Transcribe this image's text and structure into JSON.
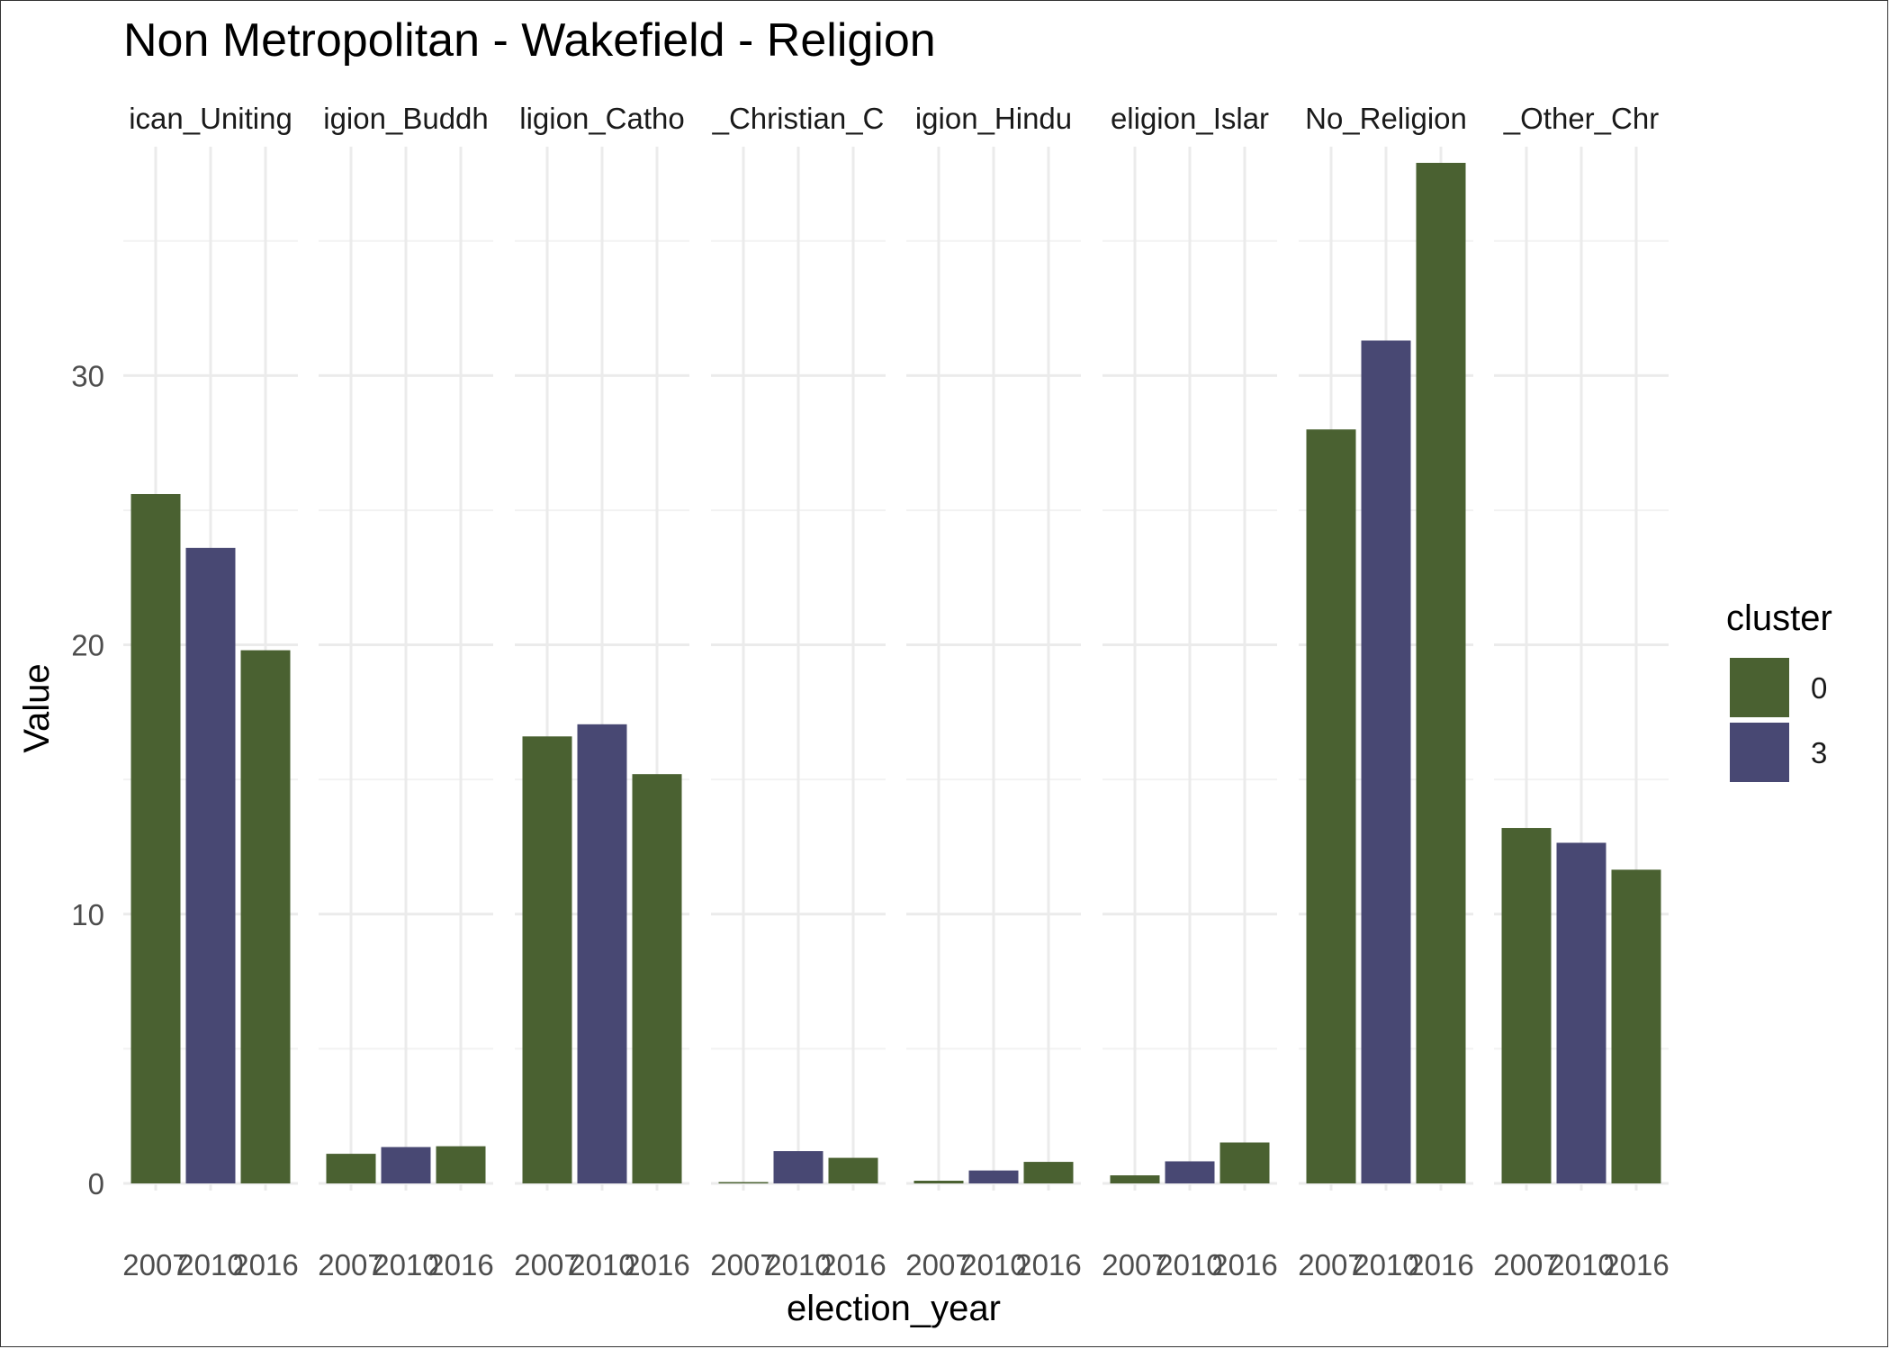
{
  "chart_data": {
    "type": "bar",
    "title": "Non Metropolitan - Wakefield - Religion",
    "xlabel": "election_year",
    "ylabel": "Value",
    "ylim": [
      0,
      38.5
    ],
    "yticks": [
      0,
      10,
      20,
      30
    ],
    "grid": true,
    "legend": {
      "title": "cluster",
      "position": "right",
      "entries": [
        {
          "label": "0",
          "color": "#4a6131"
        },
        {
          "label": "3",
          "color": "#484873"
        }
      ]
    },
    "x": [
      "2007",
      "2010",
      "2016"
    ],
    "facets": [
      {
        "label": "ican_Uniting",
        "values": [
          25.6,
          23.6,
          19.8
        ],
        "clusters": [
          "0",
          "3",
          "0"
        ]
      },
      {
        "label": "igion_Buddh",
        "values": [
          1.1,
          1.35,
          1.38
        ],
        "clusters": [
          "0",
          "3",
          "0"
        ]
      },
      {
        "label": "ligion_Catho",
        "values": [
          16.6,
          17.05,
          15.2
        ],
        "clusters": [
          "0",
          "3",
          "0"
        ]
      },
      {
        "label": "_Christian_C",
        "values": [
          0.05,
          1.2,
          0.95
        ],
        "clusters": [
          "0",
          "3",
          "0"
        ]
      },
      {
        "label": "igion_Hindu",
        "values": [
          0.1,
          0.48,
          0.8
        ],
        "clusters": [
          "0",
          "3",
          "0"
        ]
      },
      {
        "label": "eligion_Islar",
        "values": [
          0.3,
          0.82,
          1.52
        ],
        "clusters": [
          "0",
          "3",
          "0"
        ]
      },
      {
        "label": "No_Religion",
        "values": [
          28.0,
          31.3,
          37.9
        ],
        "clusters": [
          "0",
          "3",
          "0"
        ]
      },
      {
        "label": "_Other_Chr",
        "values": [
          13.2,
          12.65,
          11.65
        ],
        "clusters": [
          "0",
          "3",
          "0"
        ]
      }
    ]
  }
}
